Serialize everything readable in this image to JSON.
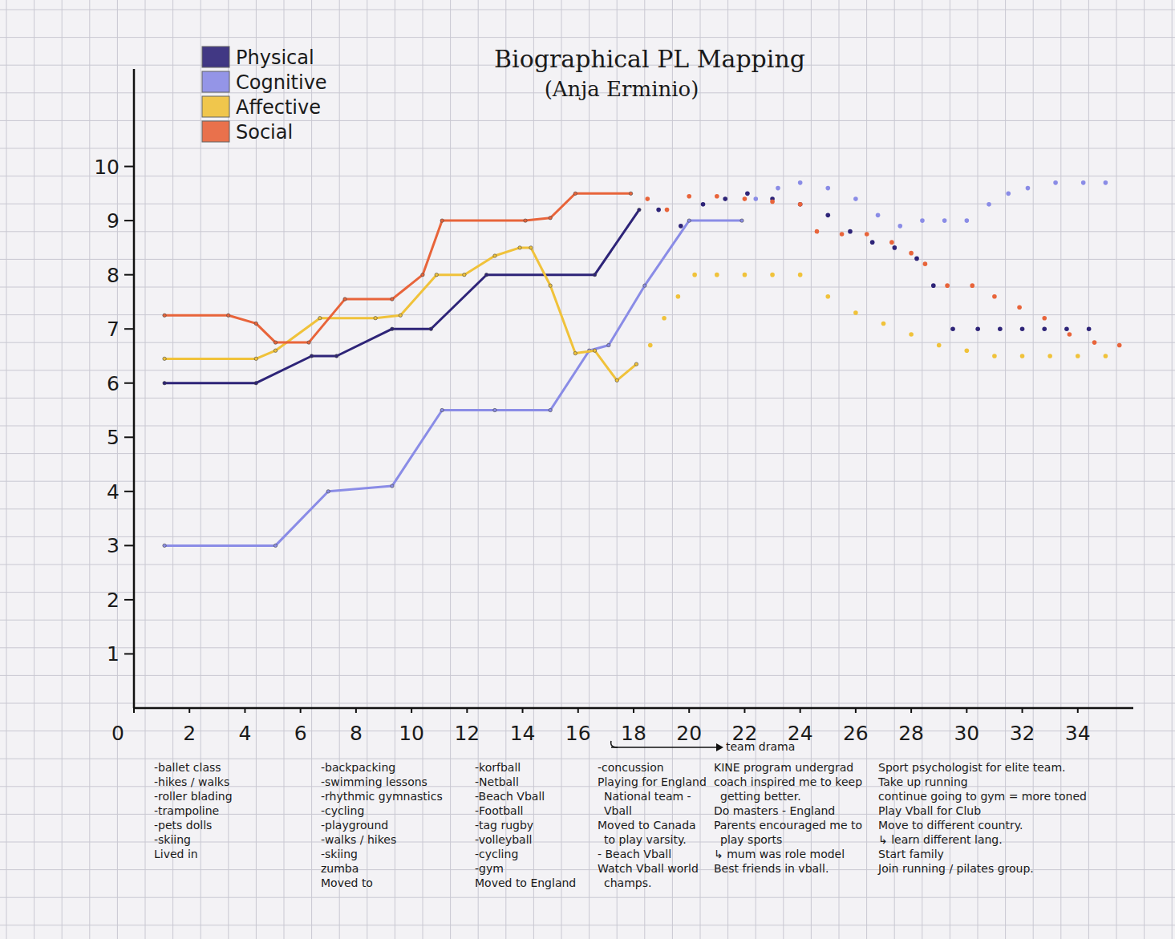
{
  "chart_data": {
    "type": "line",
    "title": "Biographical PL Mapping",
    "subtitle": "(Anja Erminio)",
    "xlim": [
      0,
      36
    ],
    "xticks": [
      0,
      2,
      4,
      6,
      8,
      10,
      12,
      14,
      16,
      18,
      20,
      22,
      24,
      26,
      28,
      30,
      32,
      34
    ],
    "ylim": [
      0,
      11.8
    ],
    "yticks": [
      1,
      2,
      3,
      4,
      5,
      6,
      7,
      8,
      9,
      10
    ],
    "grid": false,
    "legend": "upper left",
    "series": [
      {
        "name": "Physical",
        "color": "#2e2478",
        "line_style": "solid",
        "marker": "dot",
        "x": [
          1.1,
          4.4,
          6.4,
          7.3,
          9.3,
          10.7,
          12.7,
          16.6,
          18.2
        ],
        "values": [
          6,
          6,
          6.5,
          6.5,
          7,
          7,
          8,
          8,
          9.2
        ]
      },
      {
        "name": "Cognitive",
        "color": "#8a8ce6",
        "line_style": "solid",
        "marker": "dot",
        "x": [
          1.1,
          5.1,
          7,
          9.3,
          11.1,
          13,
          15,
          16.4,
          17.1,
          18.4,
          20,
          21.9
        ],
        "values": [
          3,
          3,
          4,
          4.1,
          5.5,
          5.5,
          5.5,
          6.6,
          6.7,
          7.8,
          9,
          9
        ]
      },
      {
        "name": "Affective",
        "color": "#f0c23a",
        "line_style": "solid",
        "marker": "dot",
        "x": [
          1.1,
          4.4,
          5.1,
          6.7,
          8.7,
          9.6,
          10.9,
          11.9,
          13,
          13.9,
          14.3,
          15,
          15.9,
          16.6,
          17.4,
          18.1
        ],
        "values": [
          6.45,
          6.45,
          6.6,
          7.2,
          7.2,
          7.25,
          8,
          8,
          8.35,
          8.5,
          8.5,
          7.8,
          6.55,
          6.6,
          6.05,
          6.35
        ]
      },
      {
        "name": "Social",
        "color": "#e8643a",
        "line_style": "solid",
        "marker": "dot",
        "x": [
          1.1,
          3.4,
          4.4,
          5.1,
          6.3,
          7.6,
          9.3,
          10.4,
          11.1,
          14.1,
          15,
          15.9,
          17.9
        ],
        "values": [
          7.25,
          7.25,
          7.1,
          6.75,
          6.75,
          7.55,
          7.55,
          8,
          9,
          9,
          9.05,
          9.5,
          9.5
        ]
      },
      {
        "name": "Physical",
        "color": "#2e2478",
        "line_style": "none",
        "marker": "dot",
        "x": [
          18.9,
          19.7,
          20.5,
          21.3,
          22.1,
          23,
          24,
          25,
          25.8,
          26.6,
          27.4,
          28.2,
          28.8,
          29.5,
          30.4,
          31.2,
          32,
          32.8,
          33.6,
          34.4
        ],
        "values": [
          9.2,
          8.9,
          9.3,
          9.4,
          9.5,
          9.4,
          9.3,
          9.1,
          8.8,
          8.6,
          8.5,
          8.3,
          7.8,
          7,
          7,
          7,
          7,
          7,
          7,
          7
        ]
      },
      {
        "name": "Cognitive",
        "color": "#8a8ce6",
        "line_style": "none",
        "marker": "dot",
        "x": [
          22.4,
          23.2,
          24,
          25,
          26,
          26.8,
          27.6,
          28.4,
          29.2,
          30,
          30.8,
          31.5,
          32.2,
          33.2,
          34.2,
          35
        ],
        "values": [
          9.4,
          9.6,
          9.7,
          9.6,
          9.4,
          9.1,
          8.9,
          9,
          9,
          9,
          9.3,
          9.5,
          9.6,
          9.7,
          9.7,
          9.7
        ]
      },
      {
        "name": "Affective",
        "color": "#f0c23a",
        "line_style": "none",
        "marker": "dot",
        "x": [
          18.6,
          19.1,
          19.6,
          20.2,
          21,
          22,
          23,
          24,
          25,
          26,
          27,
          28,
          29,
          30,
          31,
          32,
          33,
          34,
          35
        ],
        "values": [
          6.7,
          7.2,
          7.6,
          8,
          8,
          8,
          8,
          8,
          7.6,
          7.3,
          7.1,
          6.9,
          6.7,
          6.6,
          6.5,
          6.5,
          6.5,
          6.5,
          6.5
        ]
      },
      {
        "name": "Social",
        "color": "#e8643a",
        "line_style": "none",
        "marker": "dot",
        "x": [
          18.5,
          19.2,
          20,
          21,
          22,
          23,
          24,
          24.6,
          25.5,
          26.4,
          27.3,
          28,
          28.5,
          29.3,
          30.2,
          31,
          31.9,
          32.8,
          33.7,
          34.6,
          35.5
        ],
        "values": [
          9.4,
          9.2,
          9.45,
          9.45,
          9.4,
          9.35,
          9.3,
          8.8,
          8.75,
          8.75,
          8.6,
          8.4,
          8.2,
          7.8,
          7.8,
          7.6,
          7.4,
          7.2,
          6.9,
          6.75,
          6.7
        ]
      }
    ],
    "annotations": [
      {
        "lines": [
          "-ballet class",
          "-hikes / walks",
          "-roller blading",
          "-trampoline",
          "-pets dolls",
          "-skiing",
          "Lived in"
        ]
      },
      {
        "lines": [
          "-backpacking",
          "-swimming lessons",
          "-rhythmic gymnastics",
          "-cycling",
          "-playground",
          "-walks / hikes",
          "-skiing",
          "zumba",
          "Moved to"
        ]
      },
      {
        "lines": [
          "-korfball",
          "-Netball",
          "-Beach Vball",
          "-Football",
          "-tag rugby",
          "-volleyball",
          "-cycling",
          "-gym",
          "Moved to England"
        ]
      },
      {
        "lines": [
          "-concussion",
          "Playing for England National team - Vball",
          "Moved to Canada to play varsity.",
          "- Beach Vball",
          "Watch Vball world champs."
        ]
      },
      {
        "lines": [
          "team drama"
        ]
      },
      {
        "lines": [
          "KINE program undergrad",
          "coach inspired me to keep getting better.",
          "Do masters - England",
          "Parents encouraged me to play sports",
          "↳ mum was role model",
          "Best friends in vball."
        ]
      },
      {
        "lines": [
          "Sport psychologist for elite team.",
          "Take up running",
          "continue going to gym = more toned",
          "Play Vball for Club",
          "Move to different country.",
          "↳ learn different lang.",
          "Start family",
          "Join running / pilates group."
        ]
      }
    ]
  }
}
